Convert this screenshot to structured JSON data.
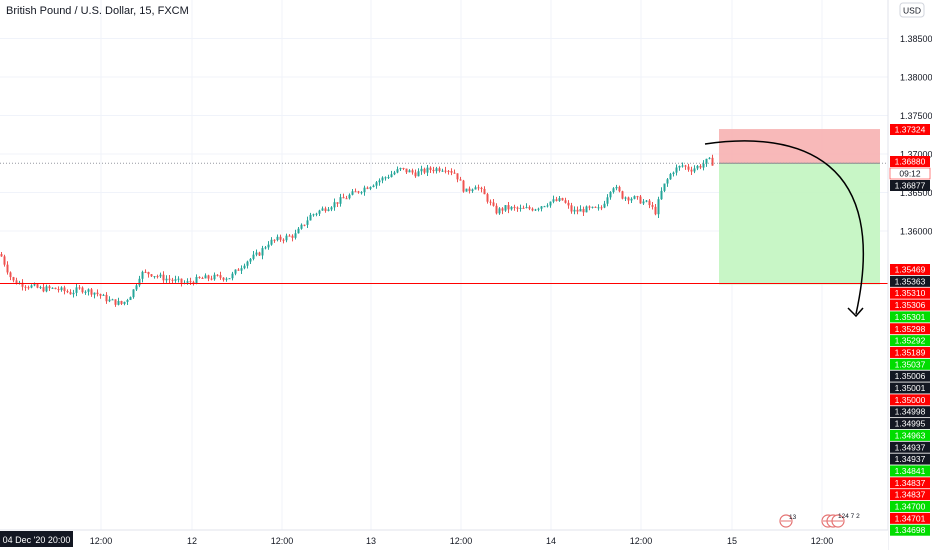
{
  "header": {
    "title": "British Pound / U.S. Dollar, 15, FXCM"
  },
  "currency_button": "USD",
  "colors": {
    "up": "#26a69a",
    "down": "#ef5350",
    "axis_text": "#131722",
    "grid": "#f0f3fa",
    "stop_zone": "#f7b1b1",
    "target_zone": "#c2f5c0",
    "level_line": "#ff0000",
    "red_label": "#ff0000",
    "green_label": "#00dd00",
    "dark_label": "#131722"
  },
  "chart_data": {
    "type": "candlestick",
    "symbol": "GBPUSD",
    "timeframe": "15",
    "ylim": [
      1.3455,
      1.3895
    ],
    "y_ticks": [
      "1.38500",
      "1.38000",
      "1.37500",
      "1.37000",
      "1.36500",
      "1.36000"
    ],
    "x_ticks": [
      "12:00",
      "12",
      "12:00",
      "13",
      "12:00",
      "14",
      "12:00",
      "15",
      "12:00"
    ],
    "cursor_date_label": "04 Dec '20  20:00",
    "path_points": [
      [
        0,
        1.357
      ],
      [
        12,
        1.3535
      ],
      [
        25,
        1.353
      ],
      [
        40,
        1.3525
      ],
      [
        55,
        1.3525
      ],
      [
        70,
        1.352
      ],
      [
        80,
        1.3525
      ],
      [
        95,
        1.352
      ],
      [
        108,
        1.351
      ],
      [
        122,
        1.3505
      ],
      [
        132,
        1.352
      ],
      [
        140,
        1.3545
      ],
      [
        150,
        1.3545
      ],
      [
        160,
        1.354
      ],
      [
        175,
        1.3535
      ],
      [
        185,
        1.3532
      ],
      [
        200,
        1.3538
      ],
      [
        215,
        1.354
      ],
      [
        230,
        1.354
      ],
      [
        245,
        1.356
      ],
      [
        258,
        1.357
      ],
      [
        268,
        1.3585
      ],
      [
        280,
        1.359
      ],
      [
        295,
        1.3595
      ],
      [
        310,
        1.362
      ],
      [
        325,
        1.363
      ],
      [
        340,
        1.364
      ],
      [
        355,
        1.365
      ],
      [
        370,
        1.366
      ],
      [
        385,
        1.367
      ],
      [
        400,
        1.368
      ],
      [
        415,
        1.3675
      ],
      [
        430,
        1.368
      ],
      [
        445,
        1.3682
      ],
      [
        455,
        1.3675
      ],
      [
        465,
        1.365
      ],
      [
        475,
        1.366
      ],
      [
        485,
        1.3645
      ],
      [
        495,
        1.3625
      ],
      [
        505,
        1.363
      ],
      [
        520,
        1.3628
      ],
      [
        535,
        1.363
      ],
      [
        550,
        1.3638
      ],
      [
        562,
        1.364
      ],
      [
        572,
        1.3625
      ],
      [
        585,
        1.3628
      ],
      [
        600,
        1.3628
      ],
      [
        612,
        1.366
      ],
      [
        622,
        1.3645
      ],
      [
        635,
        1.3642
      ],
      [
        648,
        1.3635
      ],
      [
        655,
        1.3625
      ],
      [
        662,
        1.3655
      ],
      [
        672,
        1.3678
      ],
      [
        682,
        1.3685
      ],
      [
        690,
        1.368
      ],
      [
        700,
        1.3685
      ],
      [
        708,
        1.3692
      ],
      [
        713,
        1.3688
      ]
    ],
    "current_price": "1.36880",
    "countdown": "09:12",
    "bid_price": "1.36877",
    "levels": {
      "stop": 1.37324,
      "entry": 1.3688,
      "target": 1.35306
    },
    "right_labels": [
      {
        "value": "1.37324",
        "style": "red"
      },
      {
        "value": "1.36880",
        "style": "red"
      },
      {
        "value": "09:12",
        "style": "red_light"
      },
      {
        "value": "1.36877",
        "style": "dark"
      },
      {
        "value": "1.35469",
        "style": "red"
      },
      {
        "value": "1.35363",
        "style": "dark"
      },
      {
        "value": "1.35310",
        "style": "red"
      },
      {
        "value": "1.35306",
        "style": "red"
      },
      {
        "value": "1.35301",
        "style": "green"
      },
      {
        "value": "1.35298",
        "style": "red"
      },
      {
        "value": "1.35292",
        "style": "green"
      },
      {
        "value": "1.35189",
        "style": "red"
      },
      {
        "value": "1.35037",
        "style": "green"
      },
      {
        "value": "1.35006",
        "style": "dark"
      },
      {
        "value": "1.35001",
        "style": "dark"
      },
      {
        "value": "1.35000",
        "style": "red"
      },
      {
        "value": "1.34998",
        "style": "dark"
      },
      {
        "value": "1.34995",
        "style": "dark"
      },
      {
        "value": "1.34963",
        "style": "green"
      },
      {
        "value": "1.34937",
        "style": "dark"
      },
      {
        "value": "1.34937",
        "style": "dark"
      },
      {
        "value": "1.34841",
        "style": "green"
      },
      {
        "value": "1.34837",
        "style": "red"
      },
      {
        "value": "1.34837",
        "style": "red"
      },
      {
        "value": "1.34700",
        "style": "green"
      },
      {
        "value": "1.34701",
        "style": "red"
      },
      {
        "value": "1.34698",
        "style": "green"
      }
    ],
    "event_markers": [
      {
        "label": "13"
      },
      {
        "label": "124 7 2"
      }
    ]
  }
}
